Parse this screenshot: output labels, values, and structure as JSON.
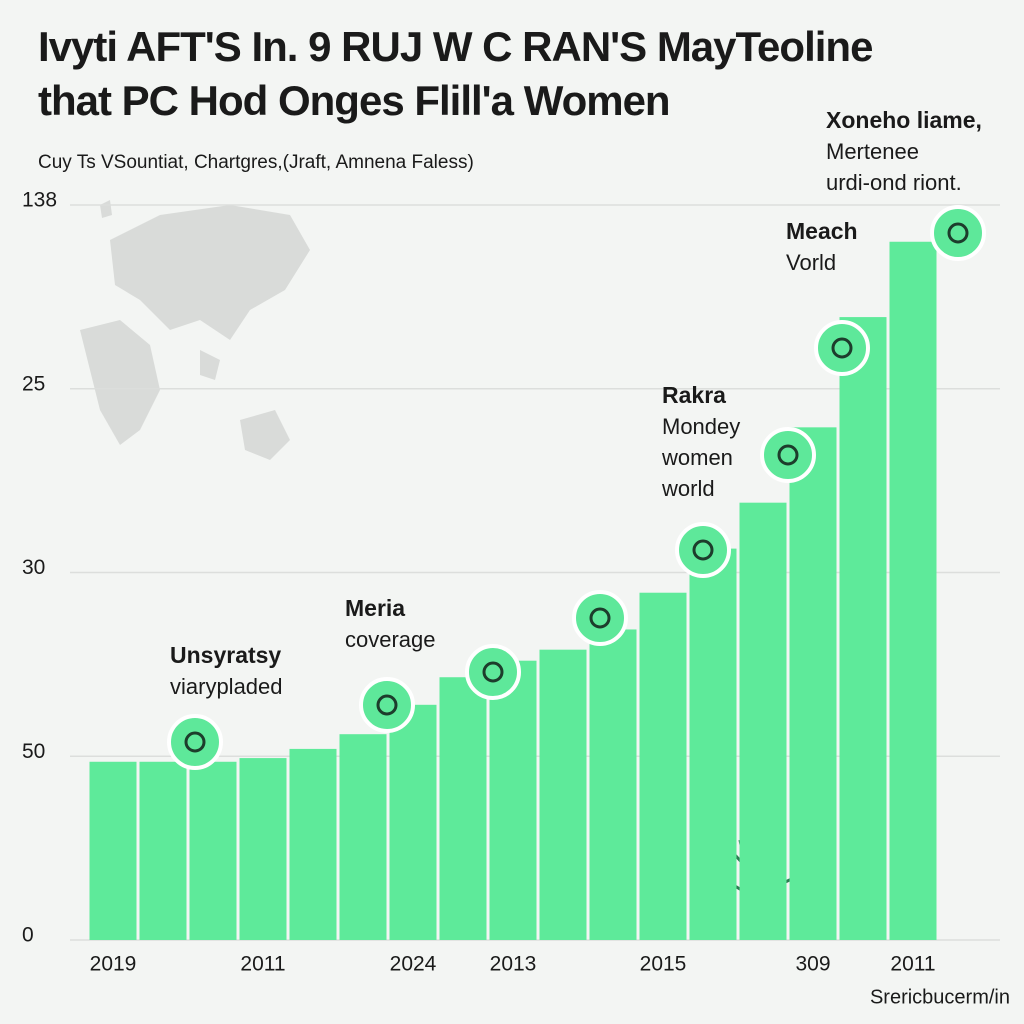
{
  "chart_data": {
    "type": "bar",
    "title": [
      "Ivyti AFT'S In. 9 RUJ W C RAN'S MayTeoline",
      "that PC Hod Onges Flill'a Women"
    ],
    "subtitle": "Cuy Ts VSountiat, Chartgres,(Jraft, Amnena Faless)",
    "source": "Srericbucerm/in",
    "categories": [
      "2019",
      null,
      null,
      "2011",
      null,
      null,
      "2024",
      null,
      "2013",
      null,
      null,
      "2015",
      null,
      null,
      "309",
      null,
      "2011"
    ],
    "values": [
      0.97,
      0.97,
      0.97,
      0.99,
      1.04,
      1.12,
      1.28,
      1.43,
      1.52,
      1.58,
      1.69,
      1.89,
      2.13,
      2.38,
      2.79,
      3.39,
      3.8
    ],
    "color": "#5eea9a",
    "ylim": [
      0,
      4
    ],
    "yticks": [
      {
        "value": 0,
        "label": "0"
      },
      {
        "value": 1,
        "label": "50"
      },
      {
        "value": 2,
        "label": "30"
      },
      {
        "value": 3,
        "label": "25"
      },
      {
        "value": 4,
        "label": "138"
      }
    ],
    "grid": true,
    "annotations": [
      {
        "lines": [
          "Unsyratsy",
          "viarypladed"
        ]
      },
      {
        "lines": [
          "Meria",
          "coverage"
        ]
      },
      {
        "lines": [
          "Rakra",
          "Mondey",
          "women",
          "world"
        ]
      },
      {
        "lines": [
          "Meach",
          "Vorld"
        ]
      },
      {
        "lines": [
          "Xoneho liame,",
          "Mertenee",
          "urdi-ond riont."
        ]
      }
    ]
  }
}
